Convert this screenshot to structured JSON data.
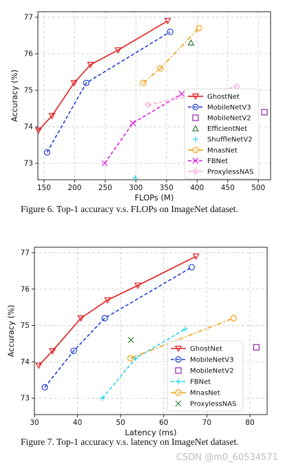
{
  "chart_data": [
    {
      "type": "line",
      "xlabel": "FLOPs (M)",
      "ylabel": "Accuracy (%)",
      "xlim": [
        140,
        520
      ],
      "ylim": [
        72.55,
        77.15
      ],
      "xticks": [
        150,
        200,
        250,
        300,
        350,
        400,
        450,
        500
      ],
      "yticks": [
        73,
        74,
        75,
        76,
        77
      ],
      "grid": true,
      "legend_position": "right",
      "series": [
        {
          "name": "GhostNet",
          "color": "#e41a1c",
          "linestyle": "solid",
          "marker": "triangle-down",
          "x": [
            141,
            163,
            199,
            226,
            271,
            352
          ],
          "y": [
            73.9,
            74.3,
            75.2,
            75.7,
            76.1,
            76.9
          ]
        },
        {
          "name": "MobileNetV3",
          "color": "#1f3bd6",
          "linestyle": "dashed",
          "marker": "circle",
          "x": [
            155,
            219,
            356
          ],
          "y": [
            73.3,
            75.2,
            76.6
          ]
        },
        {
          "name": "MobileNetV2",
          "color": "#8e24aa",
          "linestyle": "none",
          "marker": "square",
          "x": [
            510
          ],
          "y": [
            74.4
          ]
        },
        {
          "name": "EfficientNet",
          "color": "#2e7d32",
          "linestyle": "none",
          "marker": "triangle-up",
          "x": [
            390
          ],
          "y": [
            76.3
          ]
        },
        {
          "name": "ShuffleNetV2",
          "color": "#22d3ee",
          "linestyle": "none",
          "marker": "plus",
          "x": [
            299
          ],
          "y": [
            72.6
          ]
        },
        {
          "name": "MnasNet",
          "color": "#f59e0b",
          "linestyle": "dashdot",
          "marker": "circle",
          "x": [
            312,
            340,
            403
          ],
          "y": [
            75.2,
            75.6,
            76.7
          ]
        },
        {
          "name": "FBNet",
          "color": "#e11ee0",
          "linestyle": "dashed",
          "marker": "x",
          "x": [
            249,
            295,
            375
          ],
          "y": [
            73.0,
            74.1,
            74.9
          ]
        },
        {
          "name": "ProxylessNAS",
          "color": "#f9a8d4",
          "linestyle": "dashed",
          "marker": "diamond",
          "x": [
            320,
            465
          ],
          "y": [
            74.6,
            75.1
          ]
        }
      ]
    },
    {
      "type": "line",
      "xlabel": "Latency (ms)",
      "ylabel": "Accuracy (%)",
      "xlim": [
        30,
        84
      ],
      "ylim": [
        72.55,
        77.15
      ],
      "xticks": [
        30,
        40,
        50,
        60,
        70,
        80
      ],
      "yticks": [
        73,
        74,
        75,
        76,
        77
      ],
      "grid": true,
      "legend_position": "right",
      "series": [
        {
          "name": "GhostNet",
          "color": "#e41a1c",
          "linestyle": "solid",
          "marker": "triangle-down",
          "x": [
            31,
            34.2,
            40.8,
            47,
            54,
            67.5
          ],
          "y": [
            73.9,
            74.3,
            75.2,
            75.7,
            76.1,
            76.9
          ]
        },
        {
          "name": "MobileNetV3",
          "color": "#1f3bd6",
          "linestyle": "dashed",
          "marker": "circle",
          "x": [
            32.4,
            39.1,
            46.3,
            66.5
          ],
          "y": [
            73.3,
            74.3,
            75.2,
            76.6
          ]
        },
        {
          "name": "MobileNetV2",
          "color": "#8e24aa",
          "linestyle": "none",
          "marker": "square",
          "x": [
            81.5
          ],
          "y": [
            74.4
          ]
        },
        {
          "name": "FBNet",
          "color": "#22d3ee",
          "linestyle": "dashed",
          "marker": "plus",
          "x": [
            45.8,
            53.5,
            65
          ],
          "y": [
            73.0,
            74.1,
            74.9
          ]
        },
        {
          "name": "MnasNet",
          "color": "#f59e0b",
          "linestyle": "dashdot",
          "marker": "circle",
          "x": [
            52.3,
            76.2
          ],
          "y": [
            74.1,
            75.2
          ]
        },
        {
          "name": "ProxylessNAS",
          "color": "#2e7d32",
          "linestyle": "none",
          "marker": "x",
          "x": [
            52.4
          ],
          "y": [
            74.6
          ]
        }
      ]
    }
  ],
  "captions": {
    "fig6": "Figure 6. Top-1 accuracy v.s. FLOPs on ImageNet dataset.",
    "fig7": "Figure 7. Top-1 accuracy v.s. latency on ImageNet dataset."
  },
  "watermark": "CSDN @m0_60534571"
}
